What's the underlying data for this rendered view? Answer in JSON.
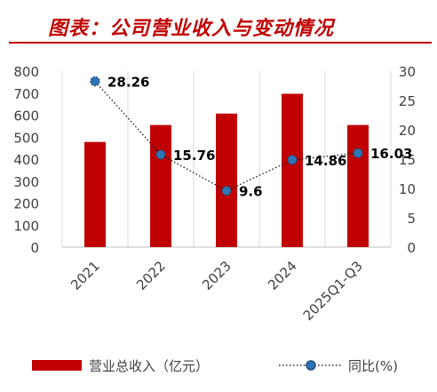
{
  "title": "图表：公司营业收入与变动情况",
  "colors": {
    "bar": "#c00000",
    "line": "#1f4e79",
    "marker": "#2e75b6",
    "title": "#c00000"
  },
  "chart_data": {
    "type": "bar",
    "categories": [
      "2021",
      "2022",
      "2023",
      "2024",
      "2025Q1-Q3"
    ],
    "series": [
      {
        "name": "营业总收入（亿元）",
        "type": "bar",
        "axis": "left",
        "values": [
          478,
          555,
          607,
          697,
          555
        ]
      },
      {
        "name": "同比(%)",
        "type": "line",
        "axis": "right",
        "style": "dotted",
        "values": [
          28.26,
          15.76,
          9.6,
          14.86,
          16.03
        ],
        "labels": [
          "28.26",
          "15.76",
          "9.6",
          "14.86",
          "16.03"
        ]
      }
    ],
    "y_left": {
      "lim": [
        0,
        800
      ],
      "ticks": [
        "0",
        "100",
        "200",
        "300",
        "400",
        "500",
        "600",
        "700",
        "800"
      ]
    },
    "y_right": {
      "lim": [
        0,
        30
      ],
      "ticks": [
        "0",
        "5",
        "10",
        "15",
        "20",
        "25",
        "30"
      ]
    },
    "grid": "vertical",
    "legend": "bottom"
  }
}
